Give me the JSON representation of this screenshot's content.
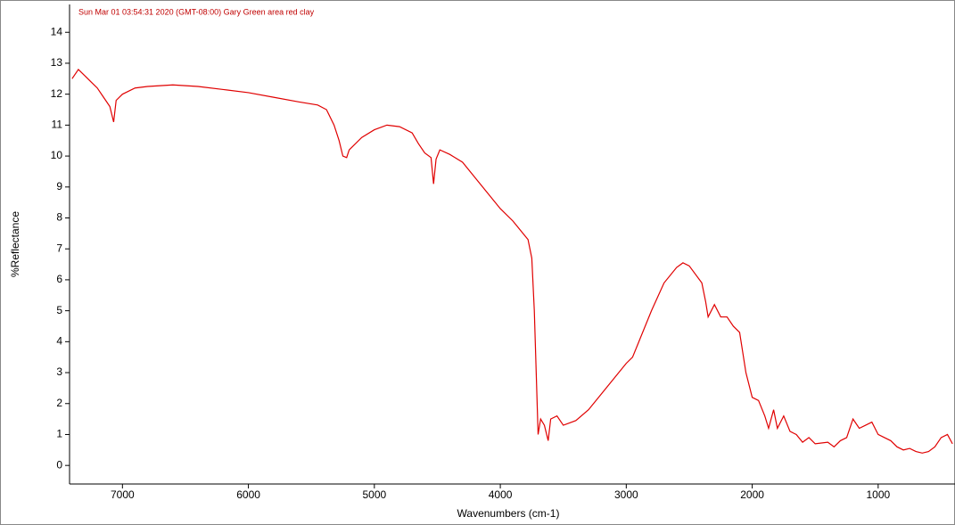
{
  "chart_data": {
    "type": "line",
    "title": "Sun Mar 01 03:54:31 2020 (GMT-08:00) Gary  Green area red clay",
    "x_label": "Wavenumbers (cm-1)",
    "y_label": "%Reflectance",
    "color": "#e00000",
    "xlim": [
      7420,
      390
    ],
    "ylim": [
      -0.6,
      14.9
    ],
    "xticks": [
      7000,
      6000,
      5000,
      4000,
      3000,
      2000,
      1000
    ],
    "yticks": [
      0,
      1,
      2,
      3,
      4,
      5,
      6,
      7,
      8,
      9,
      10,
      11,
      12,
      13,
      14
    ],
    "x": [
      7400,
      7350,
      7300,
      7250,
      7200,
      7150,
      7100,
      7070,
      7050,
      7000,
      6900,
      6800,
      6600,
      6400,
      6200,
      6000,
      5800,
      5600,
      5450,
      5380,
      5320,
      5280,
      5250,
      5220,
      5200,
      5100,
      5000,
      4900,
      4800,
      4700,
      4650,
      4600,
      4550,
      4530,
      4510,
      4480,
      4400,
      4300,
      4200,
      4100,
      4000,
      3900,
      3820,
      3780,
      3750,
      3730,
      3715,
      3700,
      3680,
      3650,
      3620,
      3600,
      3550,
      3500,
      3400,
      3300,
      3200,
      3100,
      3000,
      2950,
      2900,
      2800,
      2700,
      2600,
      2550,
      2500,
      2400,
      2370,
      2350,
      2300,
      2250,
      2200,
      2150,
      2100,
      2050,
      2000,
      1950,
      1900,
      1870,
      1830,
      1800,
      1750,
      1700,
      1650,
      1600,
      1550,
      1500,
      1400,
      1350,
      1300,
      1250,
      1200,
      1150,
      1100,
      1050,
      1000,
      950,
      900,
      850,
      800,
      750,
      700,
      650,
      600,
      550,
      500,
      450,
      410
    ],
    "values": [
      12.5,
      12.8,
      12.6,
      12.4,
      12.2,
      11.9,
      11.6,
      11.1,
      11.8,
      12.0,
      12.2,
      12.25,
      12.3,
      12.25,
      12.15,
      12.05,
      11.9,
      11.75,
      11.65,
      11.5,
      11.0,
      10.5,
      10.0,
      9.95,
      10.2,
      10.6,
      10.85,
      11.0,
      10.95,
      10.75,
      10.4,
      10.1,
      9.95,
      9.1,
      9.9,
      10.2,
      10.05,
      9.8,
      9.3,
      8.8,
      8.3,
      7.9,
      7.5,
      7.3,
      6.7,
      5.0,
      3.0,
      1.0,
      1.5,
      1.3,
      0.8,
      1.5,
      1.6,
      1.3,
      1.45,
      1.8,
      2.3,
      2.8,
      3.3,
      3.5,
      4.0,
      5.0,
      5.9,
      6.4,
      6.55,
      6.45,
      5.9,
      5.3,
      4.8,
      5.2,
      4.8,
      4.8,
      4.5,
      4.3,
      3.0,
      2.2,
      2.1,
      1.6,
      1.2,
      1.8,
      1.2,
      1.6,
      1.1,
      1.0,
      0.75,
      0.9,
      0.7,
      0.75,
      0.6,
      0.8,
      0.9,
      1.5,
      1.2,
      1.3,
      1.4,
      1.0,
      0.9,
      0.8,
      0.6,
      0.5,
      0.55,
      0.45,
      0.4,
      0.45,
      0.6,
      0.9,
      1.0,
      0.7
    ]
  }
}
